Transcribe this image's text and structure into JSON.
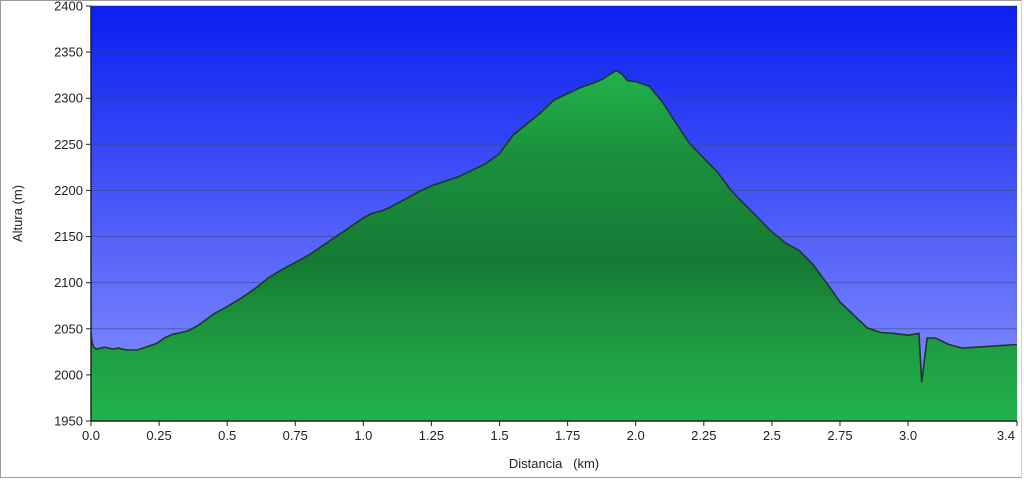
{
  "chart_data": {
    "type": "area",
    "title": "",
    "xlabel": "Distancia   (km)",
    "ylabel": "Altura (m)",
    "xlim": [
      0,
      3.4
    ],
    "ylim": [
      1950,
      2400
    ],
    "x_ticks": [
      "0.0",
      "0.25",
      "0.5",
      "0.75",
      "1.0",
      "1.25",
      "1.5",
      "1.75",
      "2.0",
      "2.25",
      "2.5",
      "2.75",
      "3.0",
      "3.4"
    ],
    "x_tick_values": [
      0,
      0.25,
      0.5,
      0.75,
      1.0,
      1.25,
      1.5,
      1.75,
      2.0,
      2.25,
      2.5,
      2.75,
      3.0,
      3.4
    ],
    "y_ticks": [
      "1950",
      "2000",
      "2050",
      "2100",
      "2150",
      "2200",
      "2250",
      "2300",
      "2350",
      "2400"
    ],
    "y_tick_values": [
      1950,
      2000,
      2050,
      2100,
      2150,
      2200,
      2250,
      2300,
      2350,
      2400
    ],
    "grid": true,
    "colors": {
      "sky_top": "#0a1ef0",
      "sky_bottom": "#8c96ff",
      "fill_light": "#22b24c",
      "fill_dark": "#157a34",
      "outline": "#1a3a22",
      "grid": "#2c4a7a",
      "axis": "#222222"
    },
    "series": [
      {
        "x": [
          0.0,
          0.004,
          0.01,
          0.02,
          0.05,
          0.08,
          0.1,
          0.13,
          0.17,
          0.2,
          0.24,
          0.27,
          0.3,
          0.33,
          0.36,
          0.4,
          0.45,
          0.5,
          0.55,
          0.6,
          0.65,
          0.7,
          0.75,
          0.8,
          0.85,
          0.9,
          0.95,
          1.0,
          1.03,
          1.07,
          1.1,
          1.15,
          1.2,
          1.25,
          1.3,
          1.35,
          1.4,
          1.45,
          1.5,
          1.55,
          1.6,
          1.65,
          1.7,
          1.75,
          1.8,
          1.85,
          1.88,
          1.9,
          1.93,
          1.95,
          1.97,
          2.0,
          2.05,
          2.1,
          2.15,
          2.2,
          2.25,
          2.3,
          2.35,
          2.4,
          2.45,
          2.5,
          2.55,
          2.6,
          2.65,
          2.7,
          2.75,
          2.8,
          2.85,
          2.9,
          2.95,
          3.0,
          3.04,
          3.05,
          3.07,
          3.1,
          3.15,
          3.2,
          3.25,
          3.3,
          3.35,
          3.4
        ],
        "y": [
          2045,
          2035,
          2030,
          2028,
          2030,
          2028,
          2029,
          2027,
          2027,
          2030,
          2034,
          2040,
          2044,
          2046,
          2048,
          2055,
          2066,
          2074,
          2083,
          2093,
          2105,
          2114,
          2122,
          2130,
          2140,
          2150,
          2160,
          2170,
          2175,
          2178,
          2182,
          2190,
          2198,
          2205,
          2210,
          2215,
          2222,
          2229,
          2240,
          2260,
          2272,
          2284,
          2298,
          2305,
          2312,
          2317,
          2321,
          2325,
          2330,
          2326,
          2319,
          2318,
          2313,
          2295,
          2272,
          2250,
          2235,
          2220,
          2200,
          2185,
          2170,
          2155,
          2143,
          2135,
          2120,
          2100,
          2079,
          2065,
          2051,
          2046,
          2045,
          2043,
          2045,
          1992,
          2040,
          2040,
          2033,
          2029,
          2030,
          2031,
          2032,
          2033
        ]
      }
    ]
  }
}
